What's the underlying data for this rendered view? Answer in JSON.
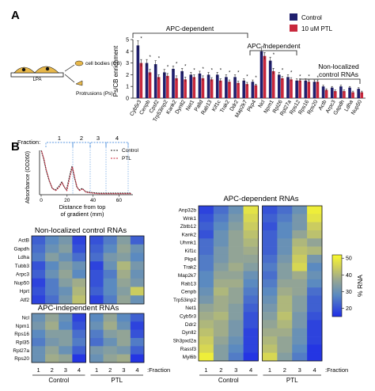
{
  "panelA": {
    "label": "A",
    "schematic": {
      "base_label": "LPA",
      "cb_label": "cell bodies (CB)",
      "ps_label": "Protrusions (Ps)"
    },
    "legend": [
      {
        "name": "Control",
        "color": "#1f1f6e"
      },
      {
        "name": "10 uM PTL",
        "color": "#c8283c"
      }
    ],
    "brackets": {
      "apc_dependent": "APC-dependent",
      "apc_independent": "APC-independent",
      "non_localized_1": "Non-localized",
      "non_localized_2": "control RNAs"
    }
  },
  "chart_data": {
    "type": "bar",
    "ylabel": "Ps/CB enrichment",
    "ylim": [
      0,
      5
    ],
    "yticks": [
      0,
      1,
      2,
      3,
      4,
      5
    ],
    "categories": [
      "Cyb5r3",
      "Cenpb",
      "Cpsf2",
      "Trp53inp2",
      "Kank2",
      "Dynll2",
      "Net1",
      "Palld",
      "Rab13",
      "Kif1c",
      "Trak2",
      "Ddr2",
      "Map2k7",
      "Pkp4",
      "Ncl",
      "Npm1",
      "Rpl26",
      "Rpl27a",
      "Rps12",
      "Rps16",
      "Rps20",
      "Actb",
      "Arpc3",
      "Gapdh",
      "Ldha",
      "Nup50"
    ],
    "series": [
      {
        "name": "Control",
        "values": [
          4.5,
          3.0,
          2.9,
          2.2,
          2.5,
          2.3,
          2.0,
          2.1,
          2.0,
          2.0,
          1.8,
          1.8,
          1.5,
          1.4,
          4.0,
          3.2,
          2.0,
          1.8,
          1.5,
          1.5,
          1.4,
          1.0,
          0.9,
          1.0,
          0.9,
          0.8
        ]
      },
      {
        "name": "10 uM PTL",
        "values": [
          3.0,
          2.2,
          1.8,
          1.9,
          1.7,
          1.6,
          1.8,
          1.7,
          1.6,
          1.5,
          1.4,
          1.3,
          1.2,
          1.1,
          3.6,
          2.3,
          1.7,
          1.6,
          1.5,
          1.4,
          1.4,
          0.7,
          0.6,
          0.6,
          0.5,
          0.5
        ]
      }
    ],
    "errors": [
      [
        0.4,
        0.3,
        0.3,
        0.25,
        0.25,
        0.25,
        0.2,
        0.2,
        0.2,
        0.2,
        0.2,
        0.2,
        0.15,
        0.15,
        0.3,
        0.3,
        0.2,
        0.2,
        0.15,
        0.15,
        0.15,
        0.1,
        0.1,
        0.1,
        0.1,
        0.1
      ],
      [
        0.3,
        0.25,
        0.2,
        0.2,
        0.2,
        0.2,
        0.2,
        0.2,
        0.15,
        0.15,
        0.15,
        0.15,
        0.15,
        0.1,
        0.3,
        0.25,
        0.15,
        0.15,
        0.15,
        0.15,
        0.15,
        0.1,
        0.1,
        0.1,
        0.1,
        0.1
      ]
    ],
    "significance": "*"
  },
  "panelB": {
    "label": "B",
    "profile": {
      "fraction_label": "Fraction:",
      "fractions": [
        "1",
        "2",
        "3",
        "4"
      ],
      "ylabel": "Absorbance (OD260)",
      "xlabel_1": "Distance from top",
      "xlabel_2": "of gradient (mm)",
      "xticks": [
        "0",
        "20",
        "40",
        "60"
      ],
      "legend": [
        {
          "name": "Control",
          "color": "#222222"
        },
        {
          "name": "PTL",
          "color": "#c8283c"
        }
      ]
    },
    "heatmaps": {
      "fraction_ticks": [
        "1",
        "2",
        "3",
        "4"
      ],
      "fraction_axis_label": ":Fraction",
      "group_control": "Control",
      "group_ptl": "PTL",
      "colorbar": {
        "label": "% RNA",
        "ticks": [
          "20",
          "30",
          "40",
          "50"
        ],
        "min": 15,
        "max": 52
      },
      "nonlocalized": {
        "title": "Non-localized control RNAs",
        "genes": [
          "ActB",
          "Gapdh",
          "Ldha",
          "Tubb3",
          "Arpc3",
          "Nup50",
          "Hprt",
          "Atf2"
        ],
        "values": [
          [
            22,
            28,
            32,
            18,
            20,
            26,
            34,
            22
          ],
          [
            24,
            30,
            34,
            20,
            22,
            28,
            36,
            30
          ],
          [
            26,
            34,
            30,
            24,
            24,
            32,
            34,
            28
          ],
          [
            20,
            28,
            34,
            30,
            18,
            30,
            40,
            32
          ],
          [
            22,
            30,
            36,
            28,
            20,
            26,
            38,
            30
          ],
          [
            18,
            26,
            34,
            38,
            20,
            28,
            36,
            32
          ],
          [
            20,
            26,
            30,
            40,
            22,
            28,
            34,
            44
          ],
          [
            18,
            24,
            32,
            42,
            18,
            26,
            36,
            30
          ]
        ]
      },
      "apc_independent": {
        "title": "APC-independent RNAs",
        "genes": [
          "Ncl",
          "Npm1",
          "Rps16",
          "Rpl35",
          "Rpl27a",
          "Rps20"
        ],
        "values": [
          [
            30,
            36,
            30,
            18,
            28,
            36,
            28,
            22
          ],
          [
            32,
            38,
            28,
            20,
            30,
            38,
            30,
            18
          ],
          [
            28,
            34,
            34,
            24,
            26,
            34,
            36,
            20
          ],
          [
            26,
            32,
            34,
            26,
            24,
            30,
            36,
            26
          ],
          [
            30,
            36,
            30,
            22,
            32,
            34,
            32,
            22
          ],
          [
            30,
            38,
            36,
            16,
            30,
            36,
            38,
            16
          ]
        ]
      },
      "apc_dependent": {
        "title": "APC-dependent RNAs",
        "genes": [
          "Anp32b",
          "Wnk1",
          "Zbtb12",
          "Kank2",
          "Uhmk1",
          "Kif1c",
          "Pkp4",
          "Trak2",
          "Map2k7",
          "Rab13",
          "Cenpb",
          "Trp53inp2",
          "Net1",
          "Cyb5r3",
          "Ddr2",
          "Dynll2",
          "Sh3pxd2a",
          "Rassf3",
          "Myl6b"
        ],
        "values": [
          [
            18,
            24,
            30,
            48,
            20,
            24,
            30,
            50
          ],
          [
            20,
            26,
            32,
            46,
            22,
            26,
            32,
            48
          ],
          [
            22,
            28,
            34,
            44,
            20,
            28,
            32,
            44
          ],
          [
            20,
            30,
            36,
            42,
            22,
            28,
            36,
            42
          ],
          [
            24,
            30,
            36,
            40,
            22,
            30,
            40,
            36
          ],
          [
            24,
            32,
            36,
            38,
            22,
            30,
            42,
            40
          ],
          [
            26,
            32,
            36,
            36,
            24,
            32,
            44,
            32
          ],
          [
            26,
            34,
            38,
            34,
            26,
            34,
            46,
            28
          ],
          [
            28,
            36,
            36,
            30,
            24,
            34,
            38,
            30
          ],
          [
            28,
            38,
            38,
            28,
            26,
            36,
            36,
            28
          ],
          [
            30,
            40,
            36,
            26,
            28,
            38,
            36,
            24
          ],
          [
            32,
            38,
            36,
            24,
            30,
            40,
            34,
            22
          ],
          [
            36,
            38,
            34,
            22,
            32,
            40,
            34,
            22
          ],
          [
            38,
            40,
            34,
            20,
            34,
            42,
            32,
            20
          ],
          [
            40,
            38,
            32,
            20,
            36,
            40,
            32,
            18
          ],
          [
            42,
            38,
            32,
            18,
            38,
            38,
            30,
            18
          ],
          [
            44,
            36,
            30,
            18,
            40,
            36,
            30,
            18
          ],
          [
            46,
            34,
            28,
            18,
            42,
            36,
            28,
            16
          ],
          [
            50,
            34,
            26,
            16,
            46,
            34,
            26,
            16
          ]
        ]
      }
    }
  }
}
